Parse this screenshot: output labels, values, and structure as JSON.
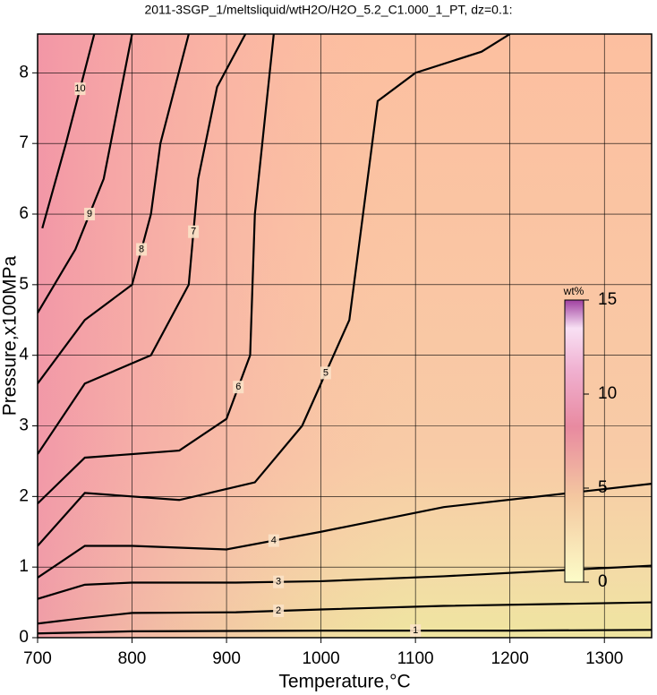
{
  "chart_data": {
    "type": "contour",
    "title": "2011-3SGP_1/meltsliquid/wtH2O/H2O_5.2_C1.000_1_PT, dz=0.1:",
    "x_label": "Temperature,°C",
    "y_label": "Pressure,x100MPa",
    "xlim": [
      700,
      1350
    ],
    "ylim": [
      0,
      8.55
    ],
    "xticks": [
      700,
      800,
      900,
      1000,
      1100,
      1200,
      1300
    ],
    "yticks": [
      0,
      1,
      2,
      3,
      4,
      5,
      6,
      7,
      8
    ],
    "grid": true,
    "contours": [
      {
        "level": 1,
        "x": [
          700,
          800,
          1000,
          1200,
          1350
        ],
        "y": [
          0.06,
          0.09,
          0.1,
          0.1,
          0.11
        ]
      },
      {
        "level": 2,
        "x": [
          700,
          750,
          800,
          910,
          1000,
          1130,
          1350
        ],
        "y": [
          0.2,
          0.28,
          0.35,
          0.36,
          0.4,
          0.45,
          0.5
        ]
      },
      {
        "level": 3,
        "x": [
          700,
          750,
          800,
          910,
          1000,
          1130,
          1350
        ],
        "y": [
          0.55,
          0.75,
          0.78,
          0.78,
          0.8,
          0.87,
          1.02
        ]
      },
      {
        "level": 4,
        "x": [
          700,
          750,
          800,
          900,
          1000,
          1130,
          1350
        ],
        "y": [
          0.85,
          1.3,
          1.3,
          1.25,
          1.5,
          1.85,
          2.18
        ]
      },
      {
        "level": 5,
        "x": [
          700,
          750,
          850,
          930,
          980,
          1030,
          1060,
          1100,
          1170,
          1200
        ],
        "y": [
          1.3,
          2.05,
          1.95,
          2.2,
          3.0,
          4.5,
          7.6,
          8.0,
          8.3,
          8.55
        ]
      },
      {
        "level": 6,
        "x": [
          700,
          750,
          850,
          900,
          925,
          930,
          950
        ],
        "y": [
          1.9,
          2.55,
          2.65,
          3.1,
          4.0,
          6.0,
          8.55
        ]
      },
      {
        "level": 7,
        "x": [
          700,
          750,
          820,
          860,
          870,
          890,
          920
        ],
        "y": [
          2.6,
          3.6,
          4.0,
          5.0,
          6.5,
          7.8,
          8.55
        ]
      },
      {
        "level": 8,
        "x": [
          700,
          750,
          800,
          820,
          830,
          860
        ],
        "y": [
          3.6,
          4.5,
          5.0,
          6.0,
          7.0,
          8.55
        ]
      },
      {
        "level": 9,
        "x": [
          700,
          740,
          770,
          800
        ],
        "y": [
          4.6,
          5.5,
          6.5,
          8.55
        ]
      },
      {
        "level": 10,
        "x": [
          705,
          730,
          760
        ],
        "y": [
          5.8,
          7.0,
          8.55
        ]
      }
    ],
    "colorbar": {
      "label": "wt%",
      "lim": [
        0,
        15
      ],
      "ticks": [
        0,
        5,
        10,
        15
      ]
    }
  }
}
